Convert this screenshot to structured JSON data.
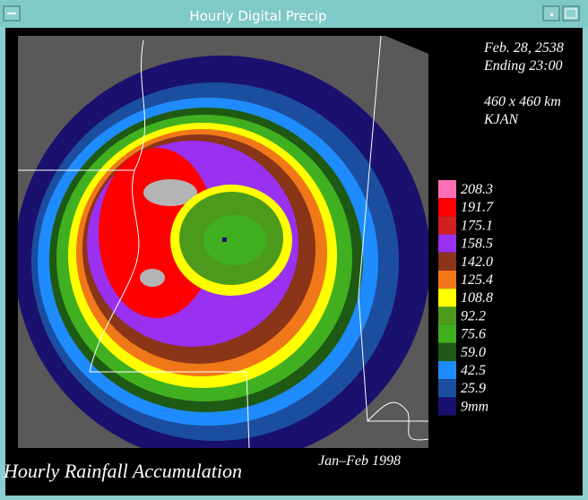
{
  "window": {
    "title": "Hourly Digital Precip"
  },
  "info": {
    "date": "Feb. 28, 2538",
    "ending": "Ending 23:00",
    "extent": "460 x 460 km",
    "station": "KJAN"
  },
  "legend": [
    {
      "label": "208.3",
      "color": "#ff6eb4"
    },
    {
      "label": "191.7",
      "color": "#ff0000"
    },
    {
      "label": "175.1",
      "color": "#d02020"
    },
    {
      "label": "158.5",
      "color": "#9a30f0"
    },
    {
      "label": "142.0",
      "color": "#8a3418"
    },
    {
      "label": "125.4",
      "color": "#f07818"
    },
    {
      "label": "108.8",
      "color": "#ffff00"
    },
    {
      "label": "92.2",
      "color": "#4c9a1c"
    },
    {
      "label": "75.6",
      "color": "#40b020"
    },
    {
      "label": "59.0",
      "color": "#1e5a14"
    },
    {
      "label": "42.5",
      "color": "#1e8cff"
    },
    {
      "label": "25.9",
      "color": "#1c4ea0"
    },
    {
      "label": "9mm",
      "color": "#1a106e"
    }
  ],
  "footer": {
    "title": "Hourly Rainfall Accumulation",
    "period": "Jan–Feb 1998"
  }
}
